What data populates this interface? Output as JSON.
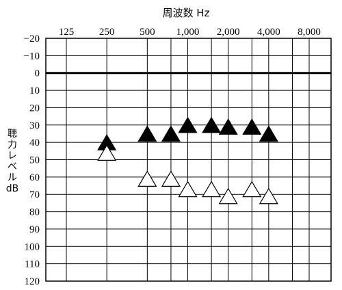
{
  "chart_data": {
    "type": "scatter",
    "title": "周波数 Hz",
    "xlabel": "周波数 Hz",
    "ylabel_lines": [
      "聴",
      "力",
      "レ",
      "ベ",
      "ル",
      "dB"
    ],
    "x_tick_labels": [
      "125",
      "250",
      "500",
      "1,000",
      "2,000",
      "4,000",
      "8,000"
    ],
    "x_tick_values": [
      125,
      250,
      500,
      1000,
      2000,
      4000,
      8000
    ],
    "y_tick_labels": [
      "−20",
      "−10",
      "0",
      "10",
      "20",
      "30",
      "40",
      "50",
      "60",
      "70",
      "80",
      "90",
      "100",
      "110",
      "120"
    ],
    "y_tick_values": [
      -20,
      -10,
      0,
      10,
      20,
      30,
      40,
      50,
      60,
      70,
      80,
      90,
      100,
      110,
      120
    ],
    "ylim": [
      -20,
      120
    ],
    "y_inverted": true,
    "x_scale": "log",
    "grid": true,
    "bold_reference_line_y": 0,
    "series": [
      {
        "marker": "filled-triangle",
        "color": "#000000",
        "points": [
          {
            "x": 250,
            "y": 40
          },
          {
            "x": 500,
            "y": 35
          },
          {
            "x": 750,
            "y": 35
          },
          {
            "x": 1000,
            "y": 30
          },
          {
            "x": 1500,
            "y": 30
          },
          {
            "x": 2000,
            "y": 31
          },
          {
            "x": 3000,
            "y": 31
          },
          {
            "x": 4000,
            "y": 35
          }
        ]
      },
      {
        "marker": "open-triangle",
        "color": "#000000",
        "points": [
          {
            "x": 250,
            "y": 46
          },
          {
            "x": 500,
            "y": 61
          },
          {
            "x": 750,
            "y": 61
          },
          {
            "x": 1000,
            "y": 67
          },
          {
            "x": 1500,
            "y": 67
          },
          {
            "x": 2000,
            "y": 71
          },
          {
            "x": 3000,
            "y": 67
          },
          {
            "x": 4000,
            "y": 71
          }
        ]
      }
    ]
  }
}
